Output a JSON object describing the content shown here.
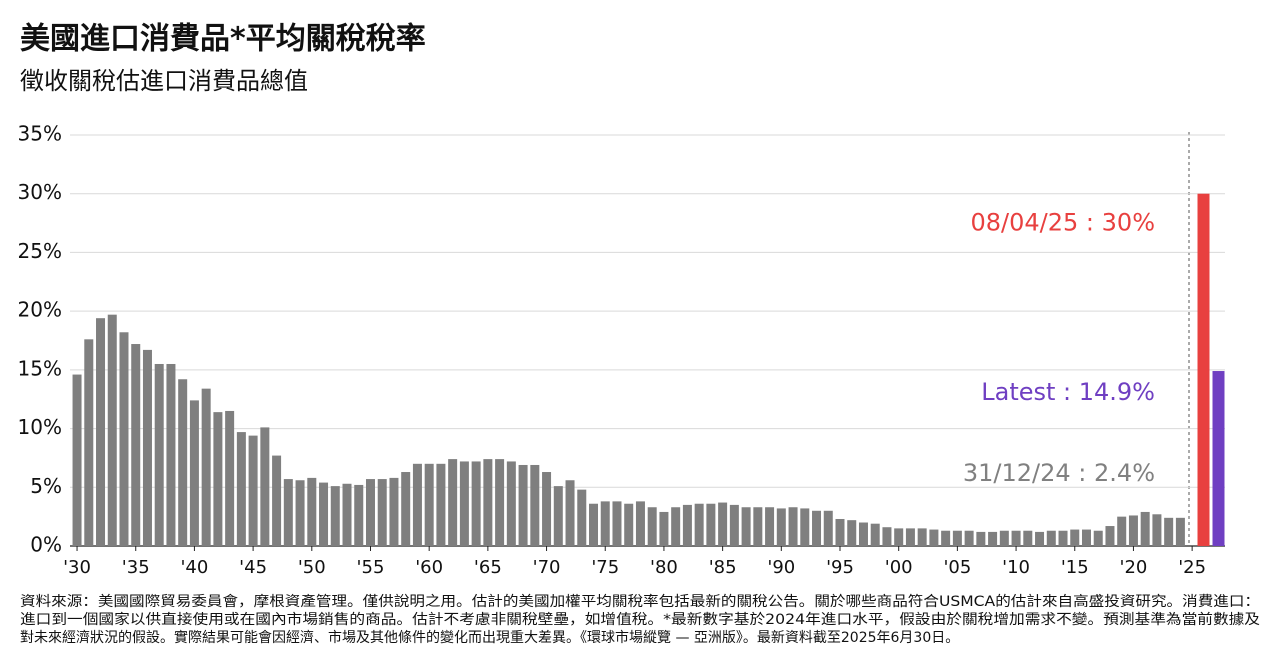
{
  "chart_data": {
    "type": "bar",
    "title": "美國進口消費品*平均關稅稅率",
    "subtitle": "徵收關稅估進口消費品總值",
    "source": [
      "資料來源：美國國際貿易委員會，摩根資產管理。僅供說明之用。估計的美國加權平均關稅率包括最新的關稅公告。關於哪些商品符合USMCA的估計來自高盛投資研究。消費進口：",
      "進口到一個國家以供直接使用或在國內市場銷售的商品。估計不考慮非關稅壁壘，如增值稅。*最新數字基於2024年進口水平，假設由於關稅增加需求不變。預測基準為當前數據及",
      "對未來經濟狀況的假設。實際結果可能會因經濟、市場及其他條件的變化而出現重大差異。《環球市場縱覽 — 亞洲版》。最新資料截至2025年6月30日。"
    ],
    "x": [
      1930,
      1931,
      1932,
      1933,
      1934,
      1935,
      1936,
      1937,
      1938,
      1939,
      1940,
      1941,
      1942,
      1943,
      1944,
      1945,
      1946,
      1947,
      1948,
      1949,
      1950,
      1951,
      1952,
      1953,
      1954,
      1955,
      1956,
      1957,
      1958,
      1959,
      1960,
      1961,
      1962,
      1963,
      1964,
      1965,
      1966,
      1967,
      1968,
      1969,
      1970,
      1971,
      1972,
      1973,
      1974,
      1975,
      1976,
      1977,
      1978,
      1979,
      1980,
      1981,
      1982,
      1983,
      1984,
      1985,
      1986,
      1987,
      1988,
      1989,
      1990,
      1991,
      1992,
      1993,
      1994,
      1995,
      1996,
      1997,
      1998,
      1999,
      2000,
      2001,
      2002,
      2003,
      2004,
      2005,
      2006,
      2007,
      2008,
      2009,
      2010,
      2011,
      2012,
      2013,
      2014,
      2015,
      2016,
      2017,
      2018,
      2019,
      2020,
      2021,
      2022,
      2023,
      2024
    ],
    "values": [
      14.6,
      17.6,
      19.4,
      19.7,
      18.2,
      17.2,
      16.7,
      15.5,
      15.5,
      14.2,
      12.4,
      13.4,
      11.4,
      11.5,
      9.7,
      9.4,
      10.1,
      7.7,
      5.7,
      5.6,
      5.8,
      5.4,
      5.1,
      5.3,
      5.2,
      5.7,
      5.7,
      5.8,
      6.3,
      7.0,
      7.0,
      7.0,
      7.4,
      7.2,
      7.2,
      7.4,
      7.4,
      7.2,
      6.9,
      6.9,
      6.3,
      5.1,
      5.6,
      4.8,
      3.6,
      3.8,
      3.8,
      3.6,
      3.8,
      3.3,
      2.9,
      3.3,
      3.5,
      3.6,
      3.6,
      3.7,
      3.5,
      3.3,
      3.3,
      3.3,
      3.2,
      3.3,
      3.2,
      3.0,
      3.0,
      2.3,
      2.2,
      2.0,
      1.9,
      1.6,
      1.5,
      1.5,
      1.5,
      1.4,
      1.3,
      1.3,
      1.3,
      1.2,
      1.2,
      1.3,
      1.3,
      1.3,
      1.2,
      1.3,
      1.3,
      1.4,
      1.4,
      1.3,
      1.7,
      2.5,
      2.6,
      2.9,
      2.7,
      2.4,
      2.4
    ],
    "color": "#7f7f7f",
    "highlights": [
      {
        "label": "08/04/25 : 30%",
        "value": 30,
        "color": "#e8403f"
      },
      {
        "label": "Latest : 14.9%",
        "value": 14.9,
        "color": "#6f3fc2"
      }
    ],
    "last_label": {
      "label": "31/12/24 : 2.4%",
      "color": "#808080"
    },
    "xlim": [
      1929.4,
      2027.8
    ],
    "xticks": [
      {
        "value": 1930,
        "label": "'30"
      },
      {
        "value": 1935,
        "label": "'35"
      },
      {
        "value": 1940,
        "label": "'40"
      },
      {
        "value": 1945,
        "label": "'45"
      },
      {
        "value": 1950,
        "label": "'50"
      },
      {
        "value": 1955,
        "label": "'55"
      },
      {
        "value": 1960,
        "label": "'60"
      },
      {
        "value": 1965,
        "label": "'65"
      },
      {
        "value": 1970,
        "label": "'70"
      },
      {
        "value": 1975,
        "label": "'75"
      },
      {
        "value": 1980,
        "label": "'80"
      },
      {
        "value": 1985,
        "label": "'85"
      },
      {
        "value": 1990,
        "label": "'90"
      },
      {
        "value": 1995,
        "label": "'95"
      },
      {
        "value": 2000,
        "label": "'00"
      },
      {
        "value": 2005,
        "label": "'05"
      },
      {
        "value": 2010,
        "label": "'10"
      },
      {
        "value": 2015,
        "label": "'15"
      },
      {
        "value": 2020,
        "label": "'20"
      },
      {
        "value": 2025,
        "label": "'25"
      }
    ],
    "ylim": [
      0,
      35
    ],
    "yticks": [
      {
        "value": 0,
        "label": "0%"
      },
      {
        "value": 5,
        "label": "5%"
      },
      {
        "value": 10,
        "label": "10%"
      },
      {
        "value": 15,
        "label": "15%"
      },
      {
        "value": 20,
        "label": "20%"
      },
      {
        "value": 25,
        "label": "25%"
      },
      {
        "value": 30,
        "label": "30%"
      },
      {
        "value": 35,
        "label": "35%"
      }
    ],
    "grid": true
  }
}
